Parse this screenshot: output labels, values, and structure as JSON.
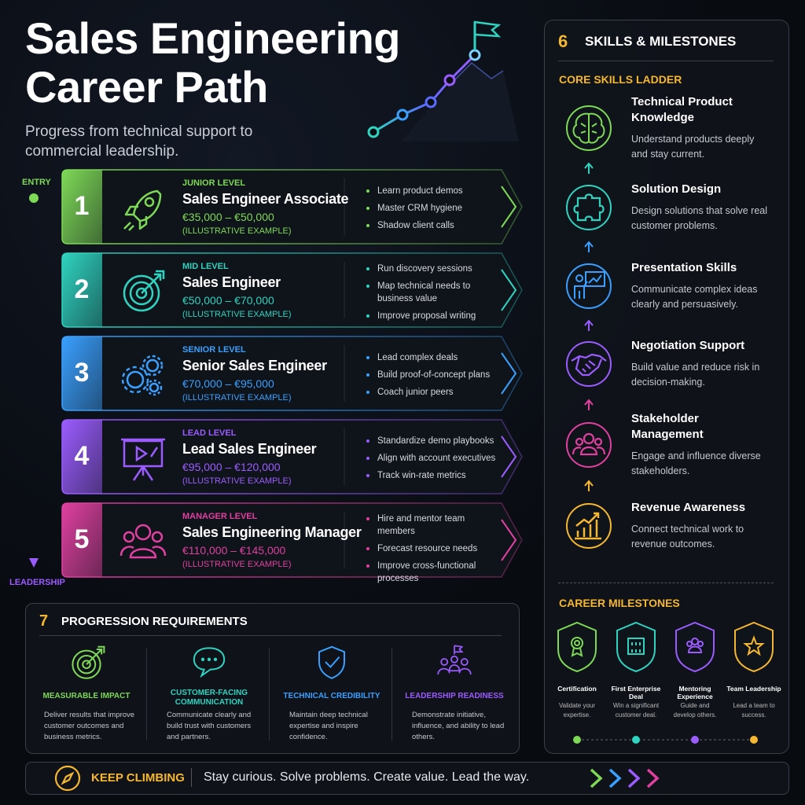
{
  "header": {
    "title": "Sales Engineering Career Path",
    "subtitle": "Progress from technical support to commercial leadership."
  },
  "path_axis": {
    "start": "ENTRY",
    "end": "LEADERSHIP"
  },
  "levels": [
    {
      "number": 1,
      "level": "JUNIOR LEVEL",
      "role": "Sales Engineer Associate",
      "salary": "€35,000 – €50,000",
      "note": "(ILLUSTRATIVE EXAMPLE)",
      "bullets": [
        "Learn product demos",
        "Master CRM hygiene",
        "Shadow client calls"
      ]
    },
    {
      "number": 2,
      "level": "MID LEVEL",
      "role": "Sales Engineer",
      "salary": "€50,000 – €70,000",
      "note": "(ILLUSTRATIVE EXAMPLE)",
      "bullets": [
        "Run discovery sessions",
        "Map technical needs to business value",
        "Improve proposal writing"
      ]
    },
    {
      "number": 3,
      "level": "SENIOR LEVEL",
      "role": "Senior Sales Engineer",
      "salary": "€70,000 – €95,000",
      "note": "(ILLUSTRATIVE EXAMPLE)",
      "bullets": [
        "Lead complex deals",
        "Build proof-of-concept plans",
        "Coach junior peers"
      ]
    },
    {
      "number": 4,
      "level": "LEAD LEVEL",
      "role": "Lead Sales Engineer",
      "salary": "€95,000 – €120,000",
      "note": "(ILLUSTRATIVE EXAMPLE)",
      "bullets": [
        "Standardize demo playbooks",
        "Align with account executives",
        "Track win-rate metrics"
      ]
    },
    {
      "number": 5,
      "level": "MANAGER LEVEL",
      "role": "Sales Engineering Manager",
      "salary": "€110,000 – €145,000",
      "note": "(ILLUSTRATIVE EXAMPLE)",
      "bullets": [
        "Hire and mentor team members",
        "Forecast resource needs",
        "Improve cross-functional processes"
      ]
    }
  ],
  "skills_panel": {
    "number": 6,
    "title": "SKILLS & MILESTONES",
    "ladder_title": "CORE SKILLS LADDER",
    "skills": [
      {
        "name": "Technical Product Knowledge",
        "desc": "Understand products deeply and stay current."
      },
      {
        "name": "Solution Design",
        "desc": "Design solutions that solve real customer problems."
      },
      {
        "name": "Presentation Skills",
        "desc": "Communicate complex ideas clearly and persuasively."
      },
      {
        "name": "Negotiation Support",
        "desc": "Build value and reduce risk in decision-making."
      },
      {
        "name": "Stakeholder Management",
        "desc": "Engage and influence diverse stakeholders."
      },
      {
        "name": "Revenue Awareness",
        "desc": "Connect technical work to revenue outcomes."
      }
    ],
    "milestones_title": "CAREER MILESTONES",
    "milestones": [
      {
        "name": "Certification",
        "desc": "Validate your expertise."
      },
      {
        "name": "First Enterprise Deal",
        "desc": "Win a significant customer deal."
      },
      {
        "name": "Mentoring Experience",
        "desc": "Guide and develop others."
      },
      {
        "name": "Team Leadership",
        "desc": "Lead a team to success."
      }
    ]
  },
  "requirements": {
    "number": 7,
    "title": "PROGRESSION REQUIREMENTS",
    "items": [
      {
        "name": "MEASURABLE IMPACT",
        "desc": "Deliver results that improve customer outcomes and business metrics."
      },
      {
        "name": "CUSTOMER-FACING COMMUNICATION",
        "desc": "Communicate clearly and build trust with customers and partners."
      },
      {
        "name": "TECHNICAL CREDIBILITY",
        "desc": "Maintain deep technical expertise and inspire confidence."
      },
      {
        "name": "LEADERSHIP READINESS",
        "desc": "Demonstrate initiative, influence, and ability to lead others."
      }
    ]
  },
  "footer": {
    "label": "KEEP CLIMBING",
    "text": "Stay curious. Solve problems. Create value. Lead the way."
  }
}
